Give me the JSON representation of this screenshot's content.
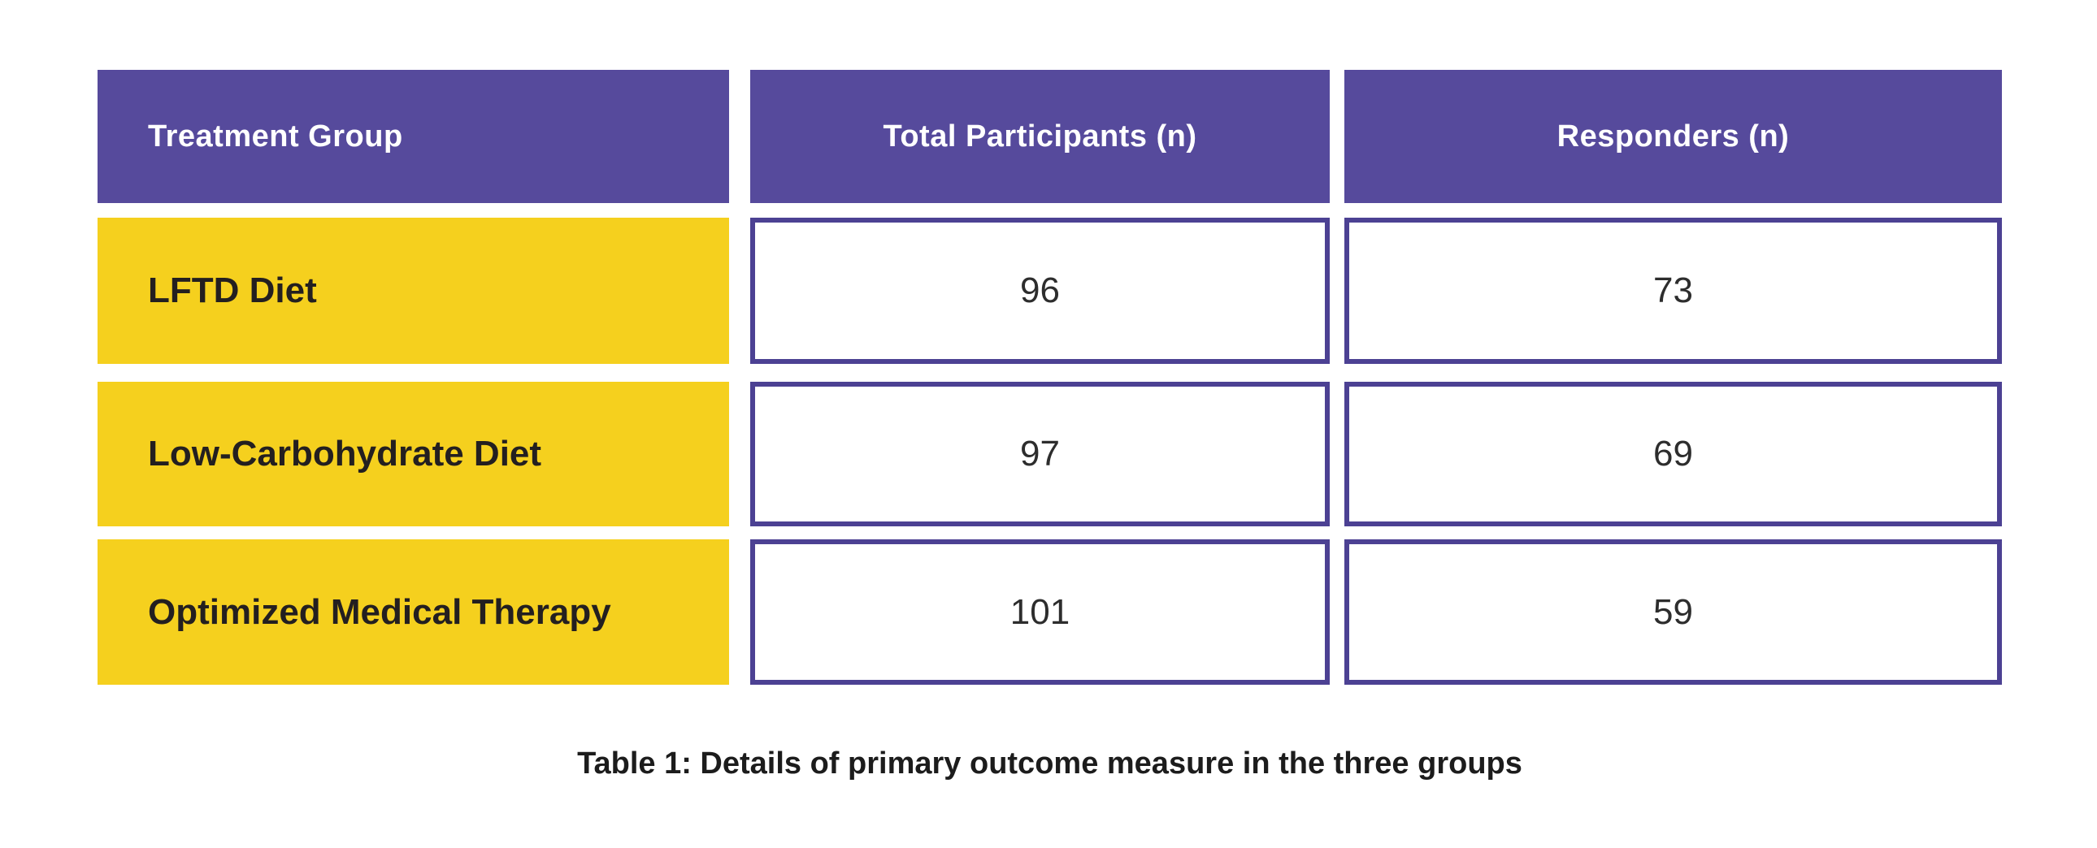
{
  "chart_data": {
    "type": "table",
    "columns": [
      "Treatment Group",
      "Total Participants (n)",
      "Responders (n)"
    ],
    "rows": [
      [
        "LFTD Diet",
        96,
        73
      ],
      [
        "Low-Carbohydrate Diet",
        97,
        69
      ],
      [
        "Optimized Medical Therapy",
        101,
        59
      ]
    ],
    "title": "Table 1: Details of primary outcome measure in the three groups",
    "layout_hints": {
      "header_style": "solid purple blocks, white text",
      "row_label_style": "solid yellow blocks, dark bold text, left aligned",
      "value_cell_style": "white cells with purple border, centered light numerals",
      "caption_position": "bottom center"
    }
  },
  "colors": {
    "page_bg": "#ffffff",
    "header_bg": "#564a9c",
    "header_text": "#ffffff",
    "row_label_bg": "#f5d01e",
    "row_label_text": "#231f20",
    "cell_bg": "#ffffff",
    "cell_border": "#4c4193",
    "value_text": "#2d2d2d",
    "caption_text": "#1c1c1c"
  }
}
